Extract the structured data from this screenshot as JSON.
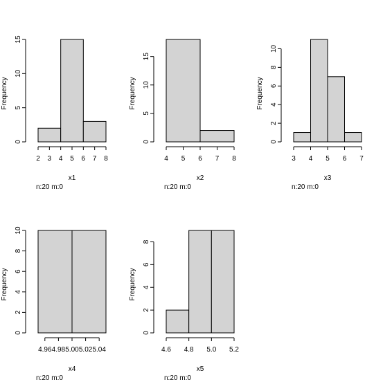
{
  "chart_data": [
    {
      "type": "bar",
      "xlabel": "x1",
      "ylabel": "Frequency",
      "note": "n:20 m:0",
      "bins": [
        [
          2,
          4
        ],
        [
          4,
          6
        ],
        [
          6,
          8
        ]
      ],
      "values": [
        2,
        15,
        3
      ],
      "xticks": [
        "2",
        "3",
        "4",
        "5",
        "6",
        "7",
        "8"
      ],
      "yticks": [
        "0",
        "5",
        "10",
        "15"
      ],
      "xlim": [
        2,
        8
      ],
      "ylim": [
        0,
        15
      ]
    },
    {
      "type": "bar",
      "xlabel": "x2",
      "ylabel": "Frequency",
      "note": "n:20 m:0",
      "bins": [
        [
          4,
          6
        ],
        [
          6,
          8
        ]
      ],
      "values": [
        18,
        2
      ],
      "xticks": [
        "4",
        "5",
        "6",
        "7",
        "8"
      ],
      "yticks": [
        "0",
        "5",
        "10",
        "15"
      ],
      "xlim": [
        4,
        8
      ],
      "ylim": [
        0,
        18
      ]
    },
    {
      "type": "bar",
      "xlabel": "x3",
      "ylabel": "Frequency",
      "note": "n:20 m:0",
      "bins": [
        [
          3,
          4
        ],
        [
          4,
          5
        ],
        [
          5,
          6
        ],
        [
          6,
          7
        ]
      ],
      "values": [
        1,
        11,
        7,
        1
      ],
      "xticks": [
        "3",
        "4",
        "5",
        "6",
        "7"
      ],
      "yticks": [
        "0",
        "2",
        "4",
        "6",
        "8",
        "10"
      ],
      "xlim": [
        3,
        7
      ],
      "ylim": [
        0,
        11
      ]
    },
    {
      "type": "bar",
      "xlabel": "x4",
      "ylabel": "Frequency",
      "note": "n:20 m:0",
      "bins": [
        [
          4.95,
          5.0
        ],
        [
          5.0,
          5.05
        ]
      ],
      "values": [
        10,
        10
      ],
      "xticks": [
        "4.96",
        "4.98",
        "5.00",
        "5.02",
        "5.04"
      ],
      "yticks": [
        "0",
        "2",
        "4",
        "6",
        "8",
        "10"
      ],
      "xlim": [
        4.95,
        5.05
      ],
      "ylim": [
        0,
        10
      ]
    },
    {
      "type": "bar",
      "xlabel": "x5",
      "ylabel": "Frequency",
      "note": "n:20 m:0",
      "bins": [
        [
          4.6,
          4.8
        ],
        [
          4.8,
          5.0
        ],
        [
          5.0,
          5.2
        ]
      ],
      "values": [
        2,
        9,
        9
      ],
      "xticks": [
        "4.6",
        "4.8",
        "5.0",
        "5.2"
      ],
      "yticks": [
        "0",
        "2",
        "4",
        "6",
        "8"
      ],
      "xlim": [
        4.6,
        5.2
      ],
      "ylim": [
        0,
        9
      ]
    }
  ],
  "style": {
    "bar_fill": "#d3d3d3",
    "bar_stroke": "#000000",
    "axis_color": "#000000",
    "background": "#ffffff"
  }
}
